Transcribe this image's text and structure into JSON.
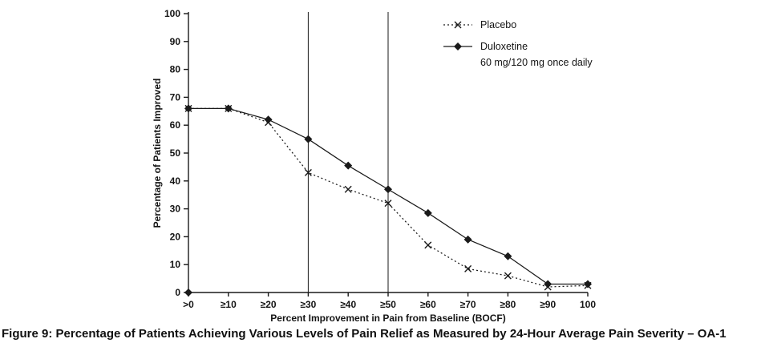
{
  "caption": "Figure 9: Percentage of Patients Achieving Various Levels of Pain Relief as Measured by 24-Hour Average Pain Severity – OA-1",
  "chart_data": {
    "type": "line",
    "title": "",
    "xlabel": "Percent Improvement in Pain from Baseline (BOCF)",
    "ylabel": "Percentage of Patients Improved",
    "categories": [
      ">0",
      "≥10",
      "≥20",
      "≥30",
      "≥40",
      "≥50",
      "≥60",
      "≥70",
      "≥80",
      "≥90",
      "100"
    ],
    "ylim": [
      0,
      100
    ],
    "ytick_step": 10,
    "grid": false,
    "legend_position": "top-right-inside",
    "reference_lines": [
      "≥30",
      "≥50"
    ],
    "axis_color": "#1a1a1a",
    "series": [
      {
        "name": "Placebo",
        "sublabel": "",
        "marker": "x",
        "line": "dotted",
        "values": [
          66,
          66,
          61,
          43,
          37,
          32,
          17,
          8.5,
          6,
          2,
          2.5
        ]
      },
      {
        "name": "Duloxetine",
        "sublabel": "60 mg/120 mg once daily",
        "marker": "diamond",
        "line": "solid",
        "values": [
          66,
          66,
          62,
          55,
          45.5,
          37,
          28.5,
          19,
          13,
          3,
          3
        ]
      }
    ]
  }
}
